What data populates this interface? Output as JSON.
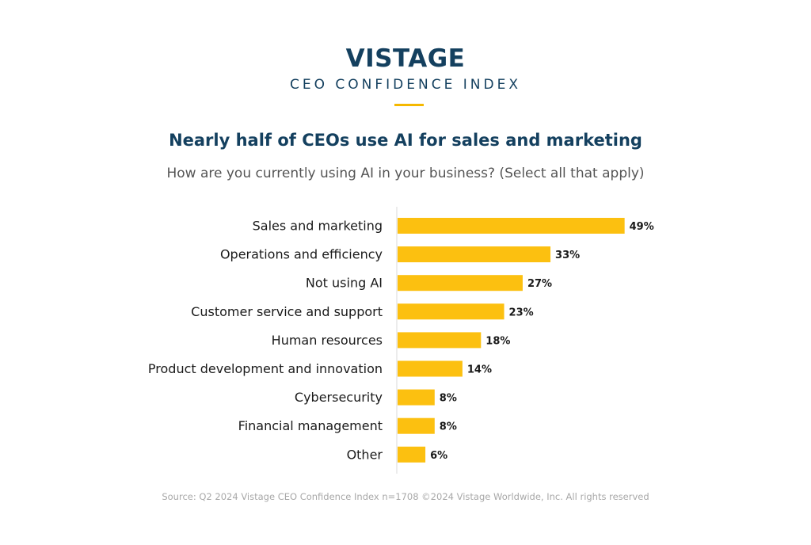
{
  "header": {
    "brand": "VISTAGE",
    "subbrand": "CEO CONFIDENCE INDEX",
    "accent_color": "#f5b800",
    "brand_color": "#14405f"
  },
  "chart_data": {
    "type": "bar",
    "orientation": "horizontal",
    "title": "Nearly half of CEOs use AI for sales and marketing",
    "subtitle": "How are you currently using AI in your business? (Select all that apply)",
    "categories": [
      "Sales and marketing",
      "Operations and efficiency",
      "Not using AI",
      "Customer service and support",
      "Human resources",
      "Product development and innovation",
      "Cybersecurity",
      "Financial management",
      "Other"
    ],
    "values": [
      49,
      33,
      27,
      23,
      18,
      14,
      8,
      8,
      6
    ],
    "value_labels": [
      "49%",
      "33%",
      "27%",
      "23%",
      "18%",
      "14%",
      "8%",
      "8%",
      "6%"
    ],
    "unit": "%",
    "bar_color": "#fcc010",
    "xlim": [
      0,
      50
    ],
    "grid": false,
    "legend": "none"
  },
  "footer": {
    "source": "Source: Q2 2024 Vistage CEO Confidence Index n=1708 ©2024 Vistage Worldwide, Inc. All rights reserved"
  }
}
